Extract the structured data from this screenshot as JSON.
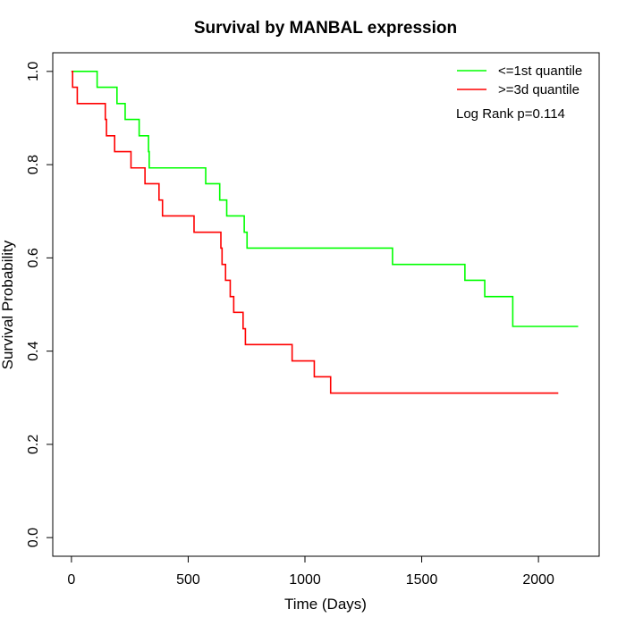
{
  "chart_data": {
    "type": "line",
    "subtype": "kaplan-meier step",
    "title": "Survival by MANBAL expression",
    "xlabel": "Time (Days)",
    "ylabel": "Survival Probability",
    "xlim": [
      -80,
      2260
    ],
    "ylim": [
      -0.04,
      1.04
    ],
    "xticks": [
      0,
      500,
      1000,
      1500,
      2000
    ],
    "yticks": [
      0.0,
      0.2,
      0.4,
      0.6,
      0.8,
      1.0
    ],
    "xtick_labels": [
      "0",
      "500",
      "1000",
      "1500",
      "2000"
    ],
    "ytick_labels": [
      "0.0",
      "0.2",
      "0.4",
      "0.6",
      "0.8",
      "1.0"
    ],
    "grid": false,
    "legend_position": "top-right",
    "annotation": "Log Rank p=0.114",
    "series": [
      {
        "name": "<=1st quantile",
        "color": "#00ff00",
        "steps": [
          [
            0,
            1.0
          ],
          [
            110,
            0.966
          ],
          [
            195,
            0.931
          ],
          [
            230,
            0.897
          ],
          [
            290,
            0.862
          ],
          [
            330,
            0.828
          ],
          [
            333,
            0.793
          ],
          [
            575,
            0.759
          ],
          [
            635,
            0.724
          ],
          [
            665,
            0.69
          ],
          [
            740,
            0.655
          ],
          [
            752,
            0.621
          ],
          [
            1375,
            0.586
          ],
          [
            1685,
            0.552
          ],
          [
            1770,
            0.517
          ],
          [
            1890,
            0.453
          ],
          [
            2170,
            0.453
          ]
        ]
      },
      {
        "name": ">=3d quantile",
        "color": "#ff0000",
        "steps": [
          [
            0,
            1.0
          ],
          [
            5,
            0.966
          ],
          [
            25,
            0.931
          ],
          [
            145,
            0.897
          ],
          [
            150,
            0.862
          ],
          [
            185,
            0.828
          ],
          [
            255,
            0.793
          ],
          [
            315,
            0.759
          ],
          [
            375,
            0.724
          ],
          [
            390,
            0.69
          ],
          [
            525,
            0.655
          ],
          [
            640,
            0.621
          ],
          [
            645,
            0.586
          ],
          [
            660,
            0.552
          ],
          [
            680,
            0.517
          ],
          [
            695,
            0.483
          ],
          [
            735,
            0.448
          ],
          [
            745,
            0.414
          ],
          [
            945,
            0.379
          ],
          [
            1040,
            0.345
          ],
          [
            1110,
            0.31
          ],
          [
            2085,
            0.31
          ]
        ]
      }
    ]
  }
}
